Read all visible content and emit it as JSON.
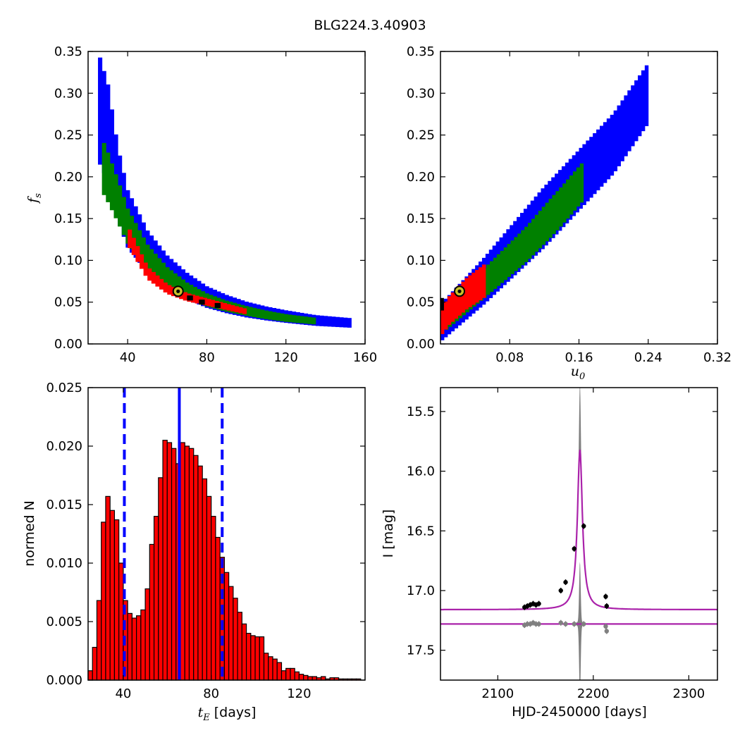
{
  "title": "BLG224.3.40903",
  "colors": {
    "outer": "#0000ff",
    "mid": "#008000",
    "inner": "#ff0000",
    "core": "#000000",
    "model": "#aa22aa",
    "residual": "#808080",
    "marker": "#c9c02a"
  },
  "chart_data": [
    {
      "type": "heatmap",
      "id": "panel-fs-vs-tE",
      "xlim": [
        20,
        160
      ],
      "ylim": [
        0.0,
        0.35
      ],
      "xticks": [
        "40",
        "80",
        "120",
        "160"
      ],
      "yticks": [
        "0.00",
        "0.05",
        "0.10",
        "0.15",
        "0.20",
        "0.25",
        "0.30",
        "0.35"
      ],
      "ylabel": "f",
      "ylabel_sub": "s",
      "best_fit": {
        "x": 65.5,
        "y": 0.063
      },
      "bands": {
        "outer": [
          [
            25,
            0.305
          ],
          [
            30,
            0.27
          ],
          [
            35,
            0.205
          ],
          [
            40,
            0.16
          ],
          [
            50,
            0.118
          ],
          [
            60,
            0.092
          ],
          [
            70,
            0.074
          ],
          [
            80,
            0.06
          ],
          [
            90,
            0.051
          ],
          [
            100,
            0.044
          ],
          [
            110,
            0.039
          ],
          [
            120,
            0.035
          ],
          [
            135,
            0.03
          ],
          [
            152,
            0.027
          ]
        ],
        "mid": [
          [
            27,
            0.228
          ],
          [
            30,
            0.212
          ],
          [
            35,
            0.182
          ],
          [
            40,
            0.15
          ],
          [
            50,
            0.11
          ],
          [
            60,
            0.085
          ],
          [
            70,
            0.068
          ],
          [
            80,
            0.056
          ],
          [
            90,
            0.048
          ],
          [
            100,
            0.042
          ],
          [
            110,
            0.037
          ],
          [
            120,
            0.033
          ],
          [
            135,
            0.029
          ]
        ],
        "inner": [
          [
            40,
            0.135
          ],
          [
            50,
            0.088
          ],
          [
            55,
            0.078
          ],
          [
            60,
            0.068
          ],
          [
            70,
            0.058
          ],
          [
            80,
            0.052
          ],
          [
            90,
            0.046
          ],
          [
            100,
            0.04
          ]
        ]
      }
    },
    {
      "type": "heatmap",
      "id": "panel-fs-vs-u0",
      "xlim": [
        0.0,
        0.32
      ],
      "ylim": [
        0.0,
        0.35
      ],
      "xticks": [
        "0.08",
        "0.16",
        "0.24",
        "0.32"
      ],
      "yticks": [
        "0.00",
        "0.05",
        "0.10",
        "0.15",
        "0.20",
        "0.25",
        "0.30",
        "0.35"
      ],
      "xlabel": "u",
      "xlabel_sub": "0",
      "best_fit": {
        "x": 0.022,
        "y": 0.063
      },
      "bands": {
        "outer": [
          [
            0.0,
            0.025
          ],
          [
            0.05,
            0.075
          ],
          [
            0.1,
            0.13
          ],
          [
            0.15,
            0.185
          ],
          [
            0.2,
            0.24
          ],
          [
            0.24,
            0.3
          ]
        ],
        "mid": [
          [
            0.005,
            0.03
          ],
          [
            0.05,
            0.072
          ],
          [
            0.1,
            0.12
          ],
          [
            0.14,
            0.165
          ],
          [
            0.165,
            0.195
          ]
        ],
        "inner": [
          [
            0.0,
            0.025
          ],
          [
            0.01,
            0.04
          ],
          [
            0.03,
            0.06
          ],
          [
            0.05,
            0.075
          ]
        ]
      }
    },
    {
      "type": "bar",
      "id": "panel-tE-histogram",
      "xlim": [
        24,
        150
      ],
      "ylim": [
        0.0,
        0.025
      ],
      "xticks": [
        "40",
        "80",
        "120"
      ],
      "yticks": [
        "0.000",
        "0.005",
        "0.010",
        "0.015",
        "0.020",
        "0.025"
      ],
      "xlabel": "t",
      "xlabel_sub": "E",
      "xlabel_rest": " [days]",
      "ylabel": "normed N",
      "bin_start": 24,
      "bin_width": 2,
      "values": [
        0.0008,
        0.0028,
        0.0068,
        0.0135,
        0.0157,
        0.0145,
        0.0137,
        0.01,
        0.0068,
        0.0057,
        0.0053,
        0.0055,
        0.006,
        0.0078,
        0.0116,
        0.014,
        0.0173,
        0.0205,
        0.0203,
        0.0198,
        0.0185,
        0.0203,
        0.02,
        0.0198,
        0.0192,
        0.0183,
        0.0172,
        0.0157,
        0.014,
        0.0122,
        0.0105,
        0.0092,
        0.008,
        0.007,
        0.0058,
        0.0048,
        0.004,
        0.0038,
        0.0037,
        0.0037,
        0.0023,
        0.002,
        0.0018,
        0.0015,
        0.0008,
        0.001,
        0.001,
        0.0007,
        0.0005,
        0.0004,
        0.0003,
        0.0003,
        0.0002,
        0.0003,
        0.0001,
        0.0002,
        0.0002,
        0.0001,
        0.0001,
        0.0001,
        0.0001,
        0.0001
      ],
      "vlines": {
        "median": 65.5,
        "lower": 40.5,
        "upper": 85
      }
    },
    {
      "type": "line",
      "id": "panel-lightcurve",
      "xlim": [
        2040,
        2330
      ],
      "ylim": [
        17.75,
        15.3
      ],
      "xticks": [
        "2100",
        "2200",
        "2300"
      ],
      "yticks": [
        "15.5",
        "16.0",
        "16.5",
        "17.0",
        "17.5"
      ],
      "xlabel": "HJD-2450000 [days]",
      "ylabel": "I [mag]",
      "model": {
        "t0": 2186,
        "base": 17.16,
        "peak": 15.82,
        "width": 3.0
      },
      "residual_baseline": 17.28,
      "points": [
        [
          2128,
          17.14
        ],
        [
          2131,
          17.13
        ],
        [
          2134,
          17.12
        ],
        [
          2137,
          17.11
        ],
        [
          2140,
          17.12
        ],
        [
          2143,
          17.11
        ],
        [
          2166,
          17.0
        ],
        [
          2171,
          16.93
        ],
        [
          2180,
          16.65
        ],
        [
          2190,
          16.46
        ],
        [
          2213,
          17.05
        ],
        [
          2214,
          17.13
        ]
      ],
      "residual_points": [
        [
          2128,
          17.29
        ],
        [
          2131,
          17.28
        ],
        [
          2134,
          17.28
        ],
        [
          2137,
          17.27
        ],
        [
          2140,
          17.28
        ],
        [
          2143,
          17.28
        ],
        [
          2166,
          17.27
        ],
        [
          2171,
          17.28
        ],
        [
          2180,
          17.28
        ],
        [
          2190,
          17.28
        ],
        [
          2213,
          17.3
        ],
        [
          2214,
          17.34
        ]
      ]
    }
  ]
}
